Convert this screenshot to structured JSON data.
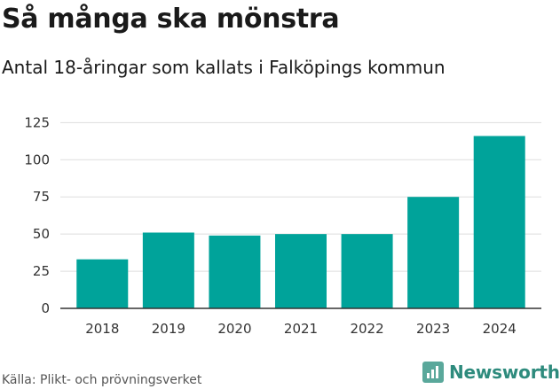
{
  "title": "Så många ska mönstra",
  "subtitle": "Antal 18-åringar som kallats i Falköpings kommun",
  "source": "Källa: Plikt- och prövningsverket",
  "brand": "Newsworthy",
  "colors": {
    "bar": "#00a39a",
    "grid": "#dddddd",
    "axis": "#333333",
    "brand": "#2e8b7d"
  },
  "icons": {
    "brand": "newsworthy-logo-icon"
  },
  "chart_data": {
    "type": "bar",
    "categories": [
      "2018",
      "2019",
      "2020",
      "2021",
      "2022",
      "2023",
      "2024"
    ],
    "values": [
      33,
      51,
      49,
      50,
      50,
      75,
      116
    ],
    "yticks": [
      0,
      25,
      50,
      75,
      100,
      125
    ],
    "ylim": [
      0,
      130
    ],
    "grid": true,
    "legend": "none"
  }
}
